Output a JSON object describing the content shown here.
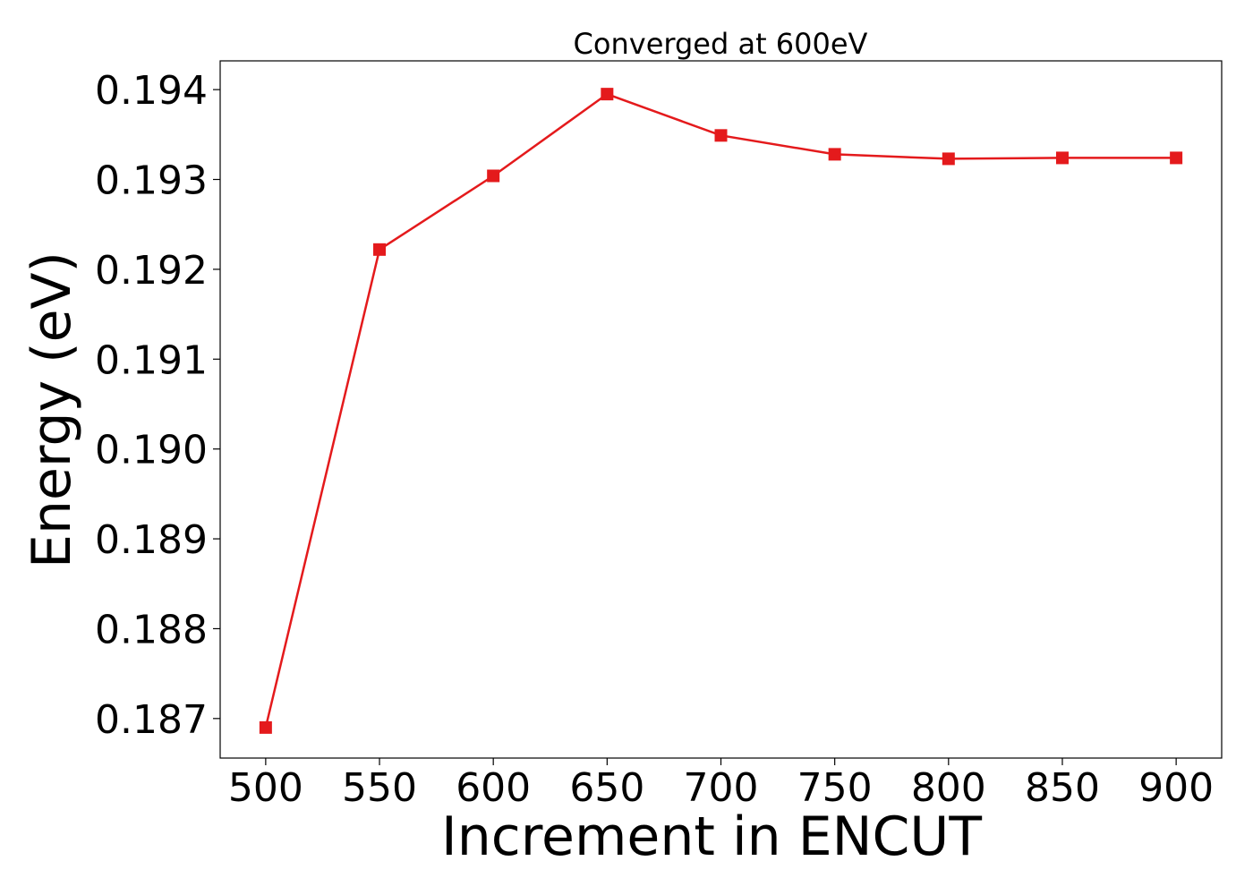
{
  "chart_data": {
    "type": "line",
    "title": "Converged at 600eV",
    "xlabel": "Increment in ENCUT",
    "ylabel": "Energy (eV)",
    "x": [
      500,
      550,
      600,
      650,
      700,
      750,
      800,
      850,
      900
    ],
    "series": [
      {
        "values": [
          0.1869,
          0.19222,
          0.19304,
          0.19395,
          0.19349,
          0.19328,
          0.19323,
          0.19324,
          0.19324
        ],
        "color": "#e41a1c",
        "marker": "square"
      }
    ],
    "xticks": [
      "500",
      "550",
      "600",
      "650",
      "700",
      "750",
      "800",
      "850",
      "900"
    ],
    "yticks": [
      "0.187",
      "0.188",
      "0.189",
      "0.190",
      "0.191",
      "0.192",
      "0.193",
      "0.194"
    ],
    "xlim": [
      480,
      920
    ],
    "ylim": [
      0.18656,
      0.19432
    ],
    "grid": false
  }
}
